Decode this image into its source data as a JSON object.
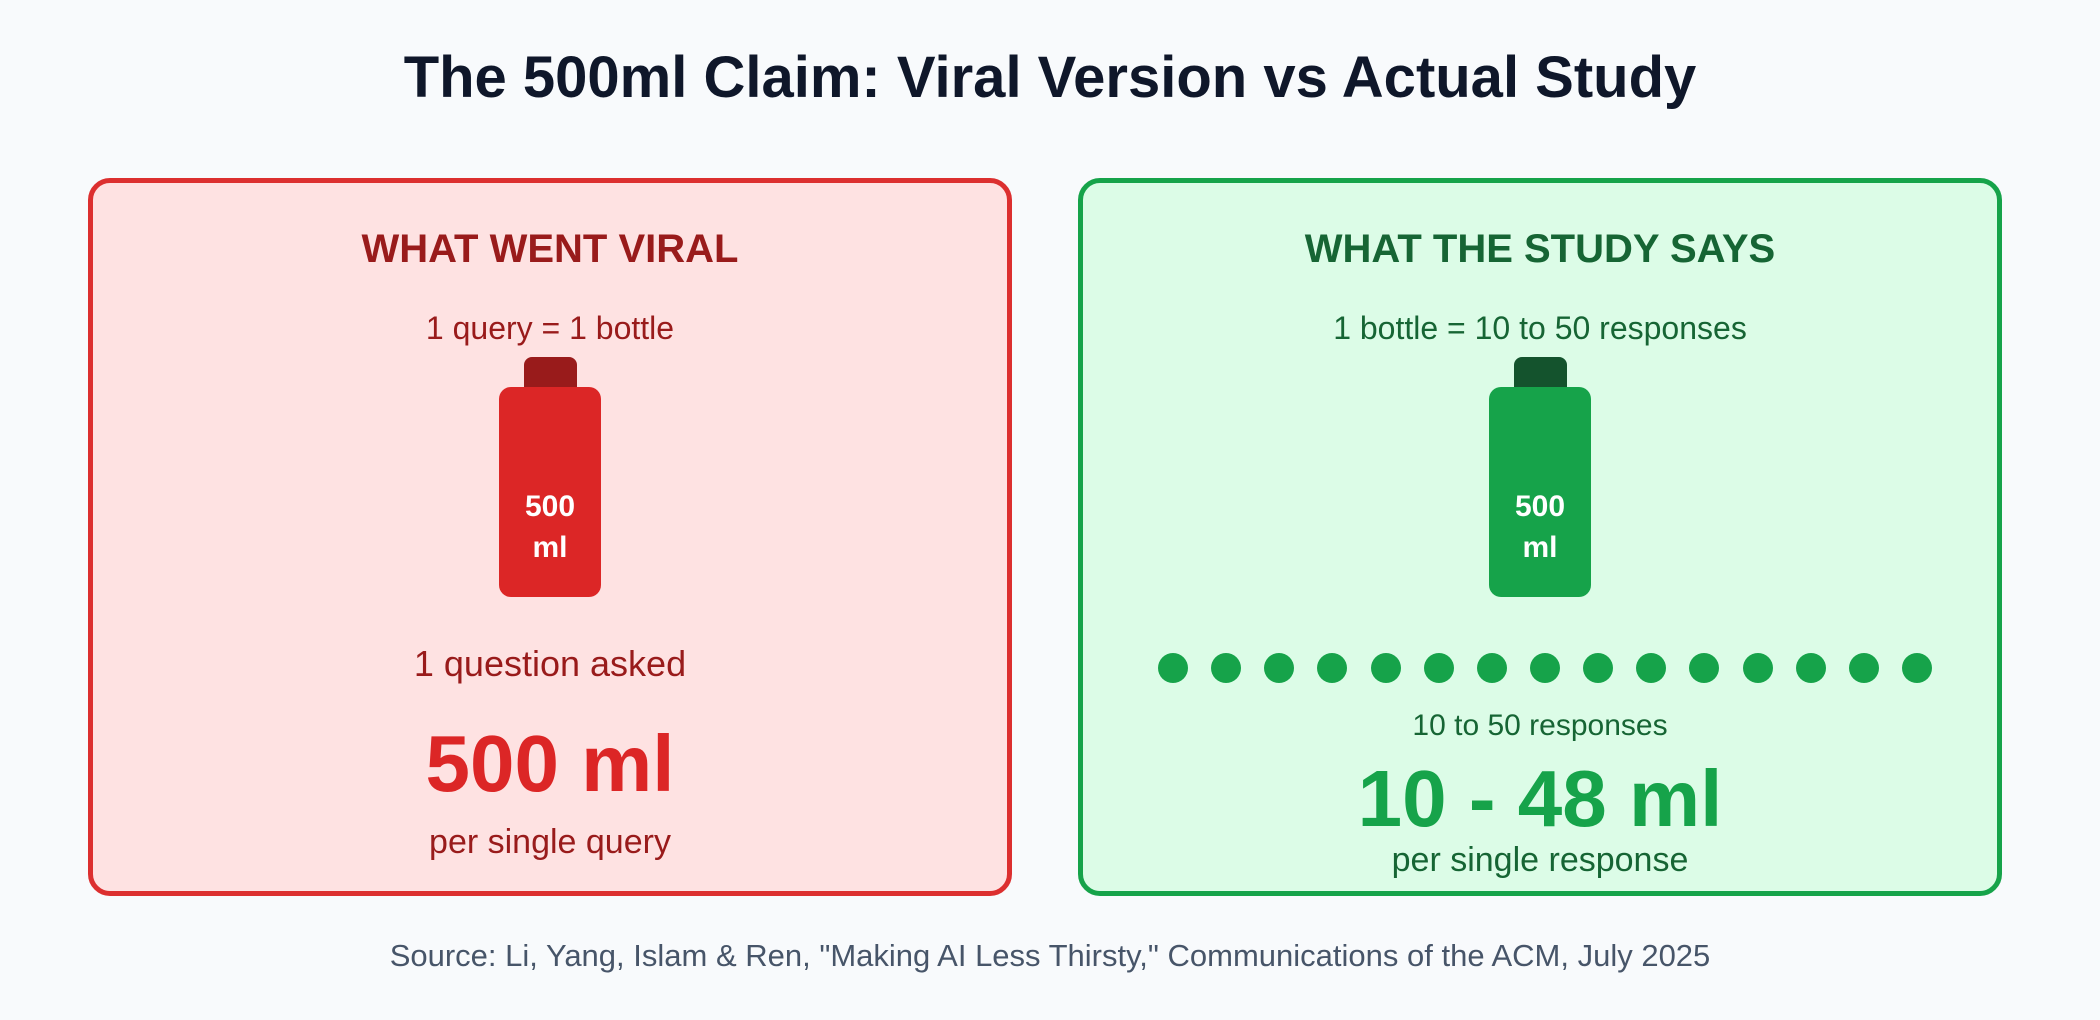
{
  "title": "The 500ml Claim: Viral Version vs Actual Study",
  "colors": {
    "viral_accent": "#dc2626",
    "viral_dark": "#991b1b",
    "viral_bg": "#fee2e2",
    "study_accent": "#16a34a",
    "study_dark": "#166534",
    "study_bg": "#dcfce7"
  },
  "viral": {
    "heading": "WHAT WENT VIRAL",
    "equation": "1 query = 1 bottle",
    "bottle": {
      "icon": "water-bottle-icon",
      "amount": "500",
      "unit": "ml"
    },
    "caption": "1 question asked",
    "big_value": "500 ml",
    "per": "per single query"
  },
  "study": {
    "heading": "WHAT THE STUDY SAYS",
    "equation": "1 bottle = 10 to 50 responses",
    "bottle": {
      "icon": "water-bottle-icon",
      "amount": "500",
      "unit": "ml"
    },
    "dot_count": 15,
    "dots_caption": "10 to 50 responses",
    "big_value": "10 - 48 ml",
    "per": "per single response"
  },
  "source": "Source: Li, Yang, Islam & Ren, \"Making AI Less Thirsty,\" Communications of the ACM, July 2025"
}
